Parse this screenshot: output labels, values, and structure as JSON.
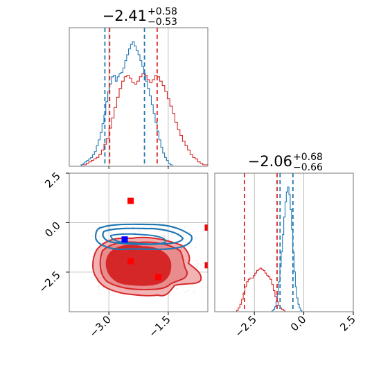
{
  "chart_data": {
    "type": "corner",
    "colors": {
      "red": "#d62728",
      "blue": "#1f77b4",
      "grid": "#b0b0b0",
      "marker_red": "#ff0000",
      "marker_blue": "#0000ff"
    },
    "param1": {
      "title_main": "−2.41",
      "title_plus": "+0.58",
      "title_minus": "−0.53",
      "range": [
        -4.0,
        -0.5
      ],
      "ticks": [
        -3.0,
        -1.5
      ],
      "tick_labels": [
        "−3.0",
        "−1.5"
      ],
      "red_quantiles": [
        -2.98,
        -1.78
      ],
      "blue_quantiles": [
        -3.1,
        -2.1
      ],
      "red_hist": {
        "x0": -3.7,
        "x1": -0.5,
        "counts": [
          1,
          1,
          2,
          3,
          4,
          5,
          6,
          8,
          11,
          15,
          19,
          26,
          33,
          40,
          47,
          53,
          58,
          61,
          62,
          60,
          57,
          56,
          58,
          61,
          63,
          62,
          59,
          57,
          59,
          62,
          61,
          58,
          55,
          51,
          46,
          41,
          36,
          30,
          25,
          21,
          17,
          14,
          11,
          8,
          6,
          5,
          3,
          2,
          1,
          1
        ]
      },
      "blue_hist": {
        "x0": -3.7,
        "x1": -1.4,
        "counts": [
          1,
          2,
          3,
          4,
          5,
          6,
          8,
          10,
          14,
          18,
          23,
          29,
          35,
          44,
          51,
          56,
          61,
          62,
          58,
          61,
          63,
          64,
          67,
          72,
          76,
          80,
          83,
          85,
          82,
          79,
          76,
          72,
          68,
          63,
          58,
          53,
          48,
          42,
          36,
          30,
          24,
          18,
          13,
          9,
          6,
          4,
          2,
          1
        ]
      }
    },
    "param2": {
      "title_main": "−2.06",
      "title_plus": "+0.68",
      "title_minus": "−0.66",
      "range": [
        -4.5,
        2.5
      ],
      "ticks": [
        -2.5,
        0.0,
        2.5
      ],
      "tick_labels": [
        "−2.5",
        "0.0",
        "2.5"
      ],
      "red_quantiles": [
        -3.0,
        -1.35
      ],
      "blue_quantiles": [
        -1.2,
        -0.55
      ],
      "red_hist": {
        "x0": -3.4,
        "x1": -0.95,
        "counts": [
          1,
          3,
          6,
          10,
          15,
          20,
          24,
          26,
          27,
          27,
          29,
          31,
          33,
          34,
          35,
          34,
          33,
          31,
          29,
          28,
          26,
          22,
          17,
          12,
          8,
          5,
          3,
          2,
          1
        ]
      },
      "blue_hist": {
        "x0": -1.6,
        "x1": -0.1,
        "counts": [
          1,
          2,
          4,
          8,
          14,
          24,
          36,
          48,
          62,
          76,
          88,
          96,
          100,
          94,
          82,
          66,
          48,
          32,
          20,
          11,
          6,
          3,
          1
        ]
      }
    },
    "joint": {
      "xlim": [
        -4.0,
        -0.5
      ],
      "ylim": [
        -4.5,
        2.5
      ],
      "x_ticks": [
        -3.0,
        -1.5
      ],
      "x_tick_labels": [
        "−3.0",
        "−1.5"
      ],
      "y_ticks": [
        -2.5,
        0.0,
        2.5
      ],
      "y_tick_labels": [
        "−2.5",
        "0.0",
        "2.5"
      ],
      "red_markers": [
        [
          -2.45,
          1.1
        ],
        [
          -2.45,
          -1.95
        ],
        [
          -1.75,
          -2.75
        ],
        [
          -0.5,
          -0.25
        ],
        [
          -0.5,
          -2.15
        ]
      ],
      "blue_markers": [
        [
          -2.6,
          -0.85
        ]
      ]
    }
  }
}
